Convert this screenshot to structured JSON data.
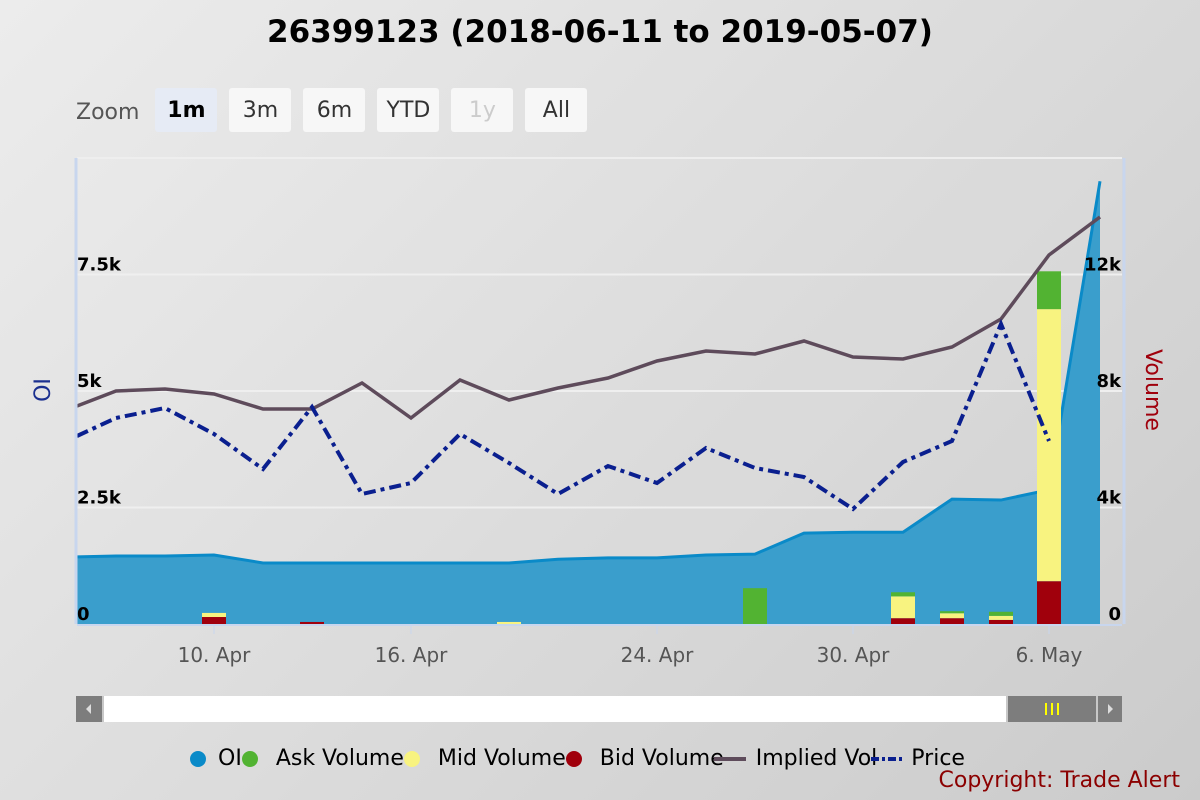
{
  "title": "26399123 (2018-06-11 to 2019-05-07)",
  "zoom": {
    "label": "Zoom",
    "buttons": [
      {
        "label": "1m",
        "state": "active"
      },
      {
        "label": "3m",
        "state": "normal"
      },
      {
        "label": "6m",
        "state": "normal"
      },
      {
        "label": "YTD",
        "state": "normal"
      },
      {
        "label": "1y",
        "state": "disabled"
      },
      {
        "label": "All",
        "state": "normal"
      }
    ]
  },
  "legend": [
    {
      "label": "OI",
      "color": "#0a8ac8",
      "symbol": "dot"
    },
    {
      "label": "Ask Volume",
      "color": "#52b332",
      "symbol": "dot"
    },
    {
      "label": "Mid Volume",
      "color": "#f8f380",
      "symbol": "dot"
    },
    {
      "label": "Bid Volume",
      "color": "#a0000c",
      "symbol": "dot"
    },
    {
      "label": "Implied Vol",
      "color": "#5e4b5b",
      "symbol": "line"
    },
    {
      "label": "Price",
      "color": "#0a1f8f",
      "symbol": "dashdot"
    }
  ],
  "copyright": "Copyright: Trade Alert",
  "chart_data": {
    "type": "area+bar+line",
    "title": "26399123 (2018-06-11 to 2019-05-07)",
    "left_axis": {
      "label": "OI",
      "color": "#1a2f8f",
      "ticks": [
        "0",
        "2.5k",
        "5k",
        "7.5k"
      ],
      "range": [
        0,
        10000
      ]
    },
    "right_axis": {
      "label": "Volume",
      "color": "#a0000c",
      "ticks": [
        "0",
        "4k",
        "8k",
        "12k"
      ],
      "range": [
        0,
        16000
      ]
    },
    "x_ticks": [
      {
        "label": "10. Apr",
        "index": 3
      },
      {
        "label": "16. Apr",
        "index": 7
      },
      {
        "label": "24. Apr",
        "index": 12
      },
      {
        "label": "30. Apr",
        "index": 16
      },
      {
        "label": "6. May",
        "index": 20
      }
    ],
    "x": [
      "Apr 5",
      "Apr 8",
      "Apr 9",
      "Apr 10",
      "Apr 11",
      "Apr 12",
      "Apr 15",
      "Apr 16",
      "Apr 17",
      "Apr 18",
      "Apr 22",
      "Apr 23",
      "Apr 24",
      "Apr 25",
      "Apr 26",
      "Apr 29",
      "Apr 30",
      "May 1",
      "May 2",
      "May 3",
      "May 6",
      "May 7"
    ],
    "series": [
      {
        "name": "OI",
        "type": "area",
        "axis": "left",
        "values": [
          1440,
          1460,
          1460,
          1480,
          1310,
          1310,
          1310,
          1310,
          1310,
          1310,
          1390,
          1420,
          1420,
          1480,
          1500,
          1950,
          1970,
          1970,
          2680,
          2660,
          2880,
          9500
        ]
      },
      {
        "name": "Ask Volume",
        "type": "bar",
        "axis": "right",
        "values": [
          0,
          0,
          0,
          0,
          0,
          0,
          0,
          0,
          0,
          0,
          0,
          0,
          0,
          0,
          1230,
          0,
          0,
          140,
          70,
          140,
          1300,
          0
        ]
      },
      {
        "name": "Mid Volume",
        "type": "bar",
        "axis": "right",
        "values": [
          0,
          0,
          0,
          140,
          0,
          0,
          0,
          0,
          0,
          70,
          0,
          0,
          0,
          0,
          0,
          0,
          0,
          750,
          170,
          140,
          9340,
          0
        ]
      },
      {
        "name": "Bid Volume",
        "type": "bar",
        "axis": "right",
        "values": [
          0,
          0,
          0,
          240,
          0,
          70,
          0,
          0,
          0,
          0,
          0,
          0,
          0,
          0,
          0,
          0,
          0,
          200,
          200,
          140,
          1470,
          0
        ]
      },
      {
        "name": "Implied Vol",
        "type": "line",
        "axis": "hidden",
        "range": [
          0,
          466
        ],
        "values": [
          218,
          233,
          235,
          230,
          215,
          215,
          241,
          206,
          244,
          224,
          236,
          246,
          263,
          273,
          270,
          283,
          267,
          265,
          277,
          305,
          369,
          407
        ]
      },
      {
        "name": "Price",
        "type": "line",
        "axis": "hidden",
        "range": [
          0,
          466
        ],
        "values": [
          188,
          206,
          216,
          190,
          155,
          217,
          130,
          141,
          190,
          161,
          130,
          158,
          141,
          176,
          156,
          147,
          115,
          162,
          183,
          300,
          183,
          null
        ]
      }
    ],
    "grid": true,
    "legend_position": "bottom"
  }
}
